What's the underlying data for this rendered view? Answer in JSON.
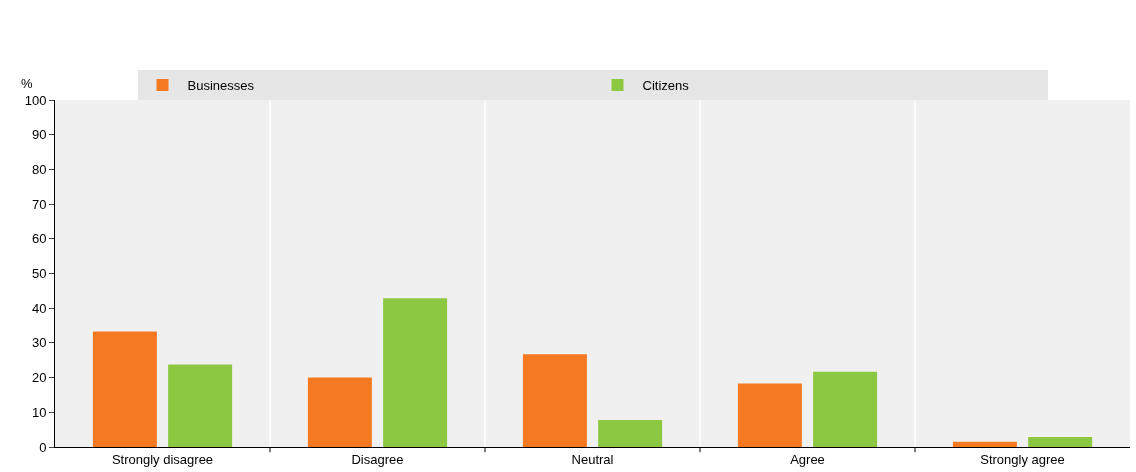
{
  "chart_data": {
    "type": "bar",
    "ylabel": "%",
    "categories": [
      "Strongly disagree",
      "Disagree",
      "Neutral",
      "Agree",
      "Strongly agree"
    ],
    "series": [
      {
        "name": "Businesses",
        "color": "#f47920",
        "values": [
          33.3,
          20,
          26.7,
          18.3,
          1.5
        ]
      },
      {
        "name": "Citizens",
        "color": "#8cc841",
        "values": [
          23.8,
          42.9,
          7.8,
          21.7,
          2.9
        ]
      }
    ],
    "ylim": [
      0,
      100
    ],
    "yticks": [
      0,
      10,
      20,
      30,
      40,
      50,
      60,
      70,
      80,
      90,
      100
    ],
    "grid": "x",
    "legend": "top"
  }
}
